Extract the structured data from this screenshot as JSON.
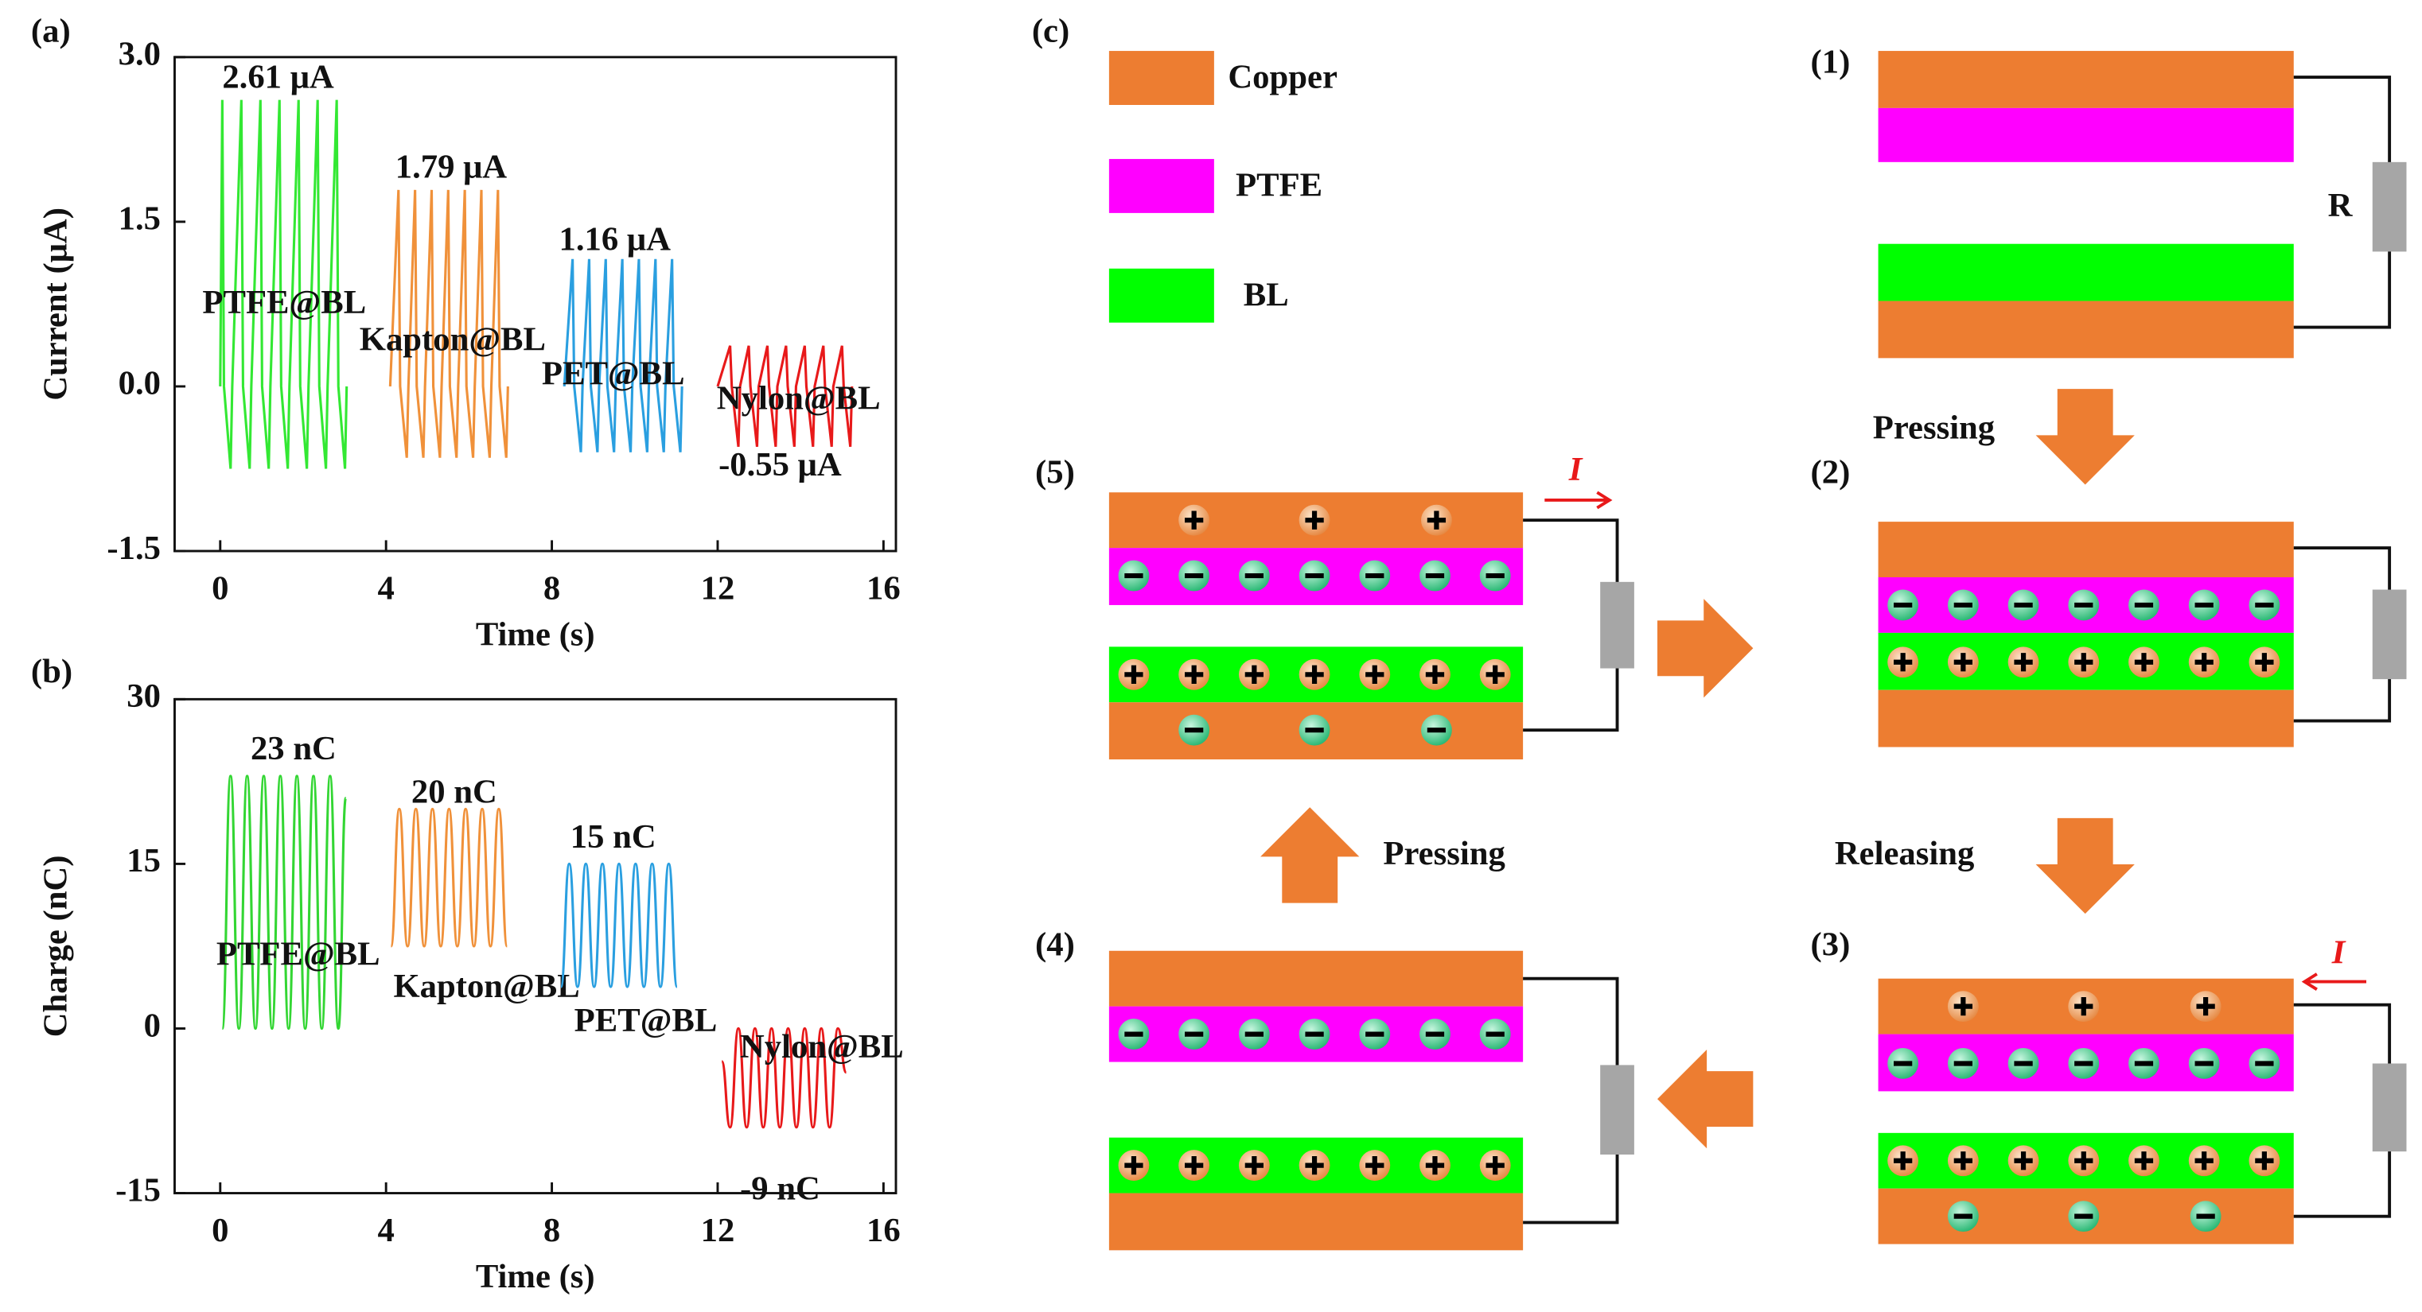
{
  "chart_data": [
    {
      "type": "line",
      "panel": "(a)",
      "xlabel": "Time (s)",
      "ylabel": "Current (μA)",
      "xlim": [
        -1.1,
        16.3
      ],
      "ylim": [
        -1.5,
        3.0
      ],
      "xticks": [
        0,
        4,
        8,
        12,
        16
      ],
      "yticks": [
        -1.5,
        {
          "value": 0,
          "label": "0.0"
        },
        1.5,
        {
          "value": 3,
          "label": "3.0"
        }
      ],
      "annotations": [
        "2.61 μA",
        "1.79 μA",
        "1.16 μA",
        "-0.55 μA"
      ],
      "series": [
        {
          "name": "PTFE@BL",
          "color": "#33e833",
          "x": [
            0,
            0.05,
            0.09,
            0.25,
            0.29,
            0.51,
            0.55,
            0.71,
            0.75,
            0.97,
            1.01,
            1.17,
            1.21,
            1.43,
            1.47,
            1.63,
            1.67,
            1.89,
            1.93,
            2.09,
            2.13,
            2.35,
            2.39,
            2.55,
            2.59,
            2.81,
            2.85,
            3.01,
            3.05
          ],
          "values": [
            0,
            2.61,
            0,
            -0.75,
            0,
            2.61,
            0,
            -0.75,
            0,
            2.61,
            0,
            -0.75,
            0,
            2.61,
            0,
            -0.75,
            0,
            2.61,
            0,
            -0.75,
            0,
            2.61,
            0,
            -0.75,
            0,
            2.61,
            0,
            -0.75,
            0
          ]
        },
        {
          "name": "Kapton@BL",
          "color": "#f0913a",
          "x": [
            4.1,
            4.3,
            4.34,
            4.5,
            4.54,
            4.7,
            4.74,
            4.9,
            4.94,
            5.1,
            5.14,
            5.3,
            5.34,
            5.5,
            5.54,
            5.7,
            5.74,
            5.9,
            5.94,
            6.1,
            6.14,
            6.3,
            6.34,
            6.5,
            6.54,
            6.7,
            6.74,
            6.9,
            6.94
          ],
          "values": [
            0,
            1.79,
            0,
            -0.65,
            0,
            1.79,
            0,
            -0.65,
            0,
            1.79,
            0,
            -0.65,
            0,
            1.79,
            0,
            -0.65,
            0,
            1.79,
            0,
            -0.65,
            0,
            1.79,
            0,
            -0.65,
            0,
            1.79,
            0,
            -0.65,
            0
          ]
        },
        {
          "name": "PET@BL",
          "color": "#2a9fe0",
          "x": [
            8.3,
            8.5,
            8.54,
            8.7,
            8.74,
            8.9,
            8.94,
            9.1,
            9.14,
            9.3,
            9.34,
            9.5,
            9.54,
            9.7,
            9.74,
            9.9,
            9.94,
            10.1,
            10.14,
            10.3,
            10.34,
            10.5,
            10.54,
            10.7,
            10.74,
            10.9,
            10.94,
            11.1,
            11.14
          ],
          "values": [
            0,
            1.16,
            0,
            -0.6,
            0,
            1.16,
            0,
            -0.6,
            0,
            1.16,
            0,
            -0.6,
            0,
            1.16,
            0,
            -0.6,
            0,
            1.16,
            0,
            -0.6,
            0,
            1.16,
            0,
            -0.6,
            0,
            1.16,
            0,
            -0.6,
            0
          ]
        },
        {
          "name": "Nylon@BL",
          "color": "#e8191a",
          "x": [
            12.0,
            12.3,
            12.34,
            12.5,
            12.54,
            12.75,
            12.79,
            12.95,
            12.99,
            13.2,
            13.24,
            13.4,
            13.44,
            13.65,
            13.69,
            13.85,
            13.89,
            14.1,
            14.14,
            14.3,
            14.34,
            14.55,
            14.59,
            14.75,
            14.79,
            15.0,
            15.04,
            15.2,
            15.24
          ],
          "values": [
            0,
            0.37,
            0,
            -0.55,
            0,
            0.37,
            0,
            -0.55,
            0,
            0.37,
            0,
            -0.55,
            0,
            0.37,
            0,
            -0.55,
            0,
            0.37,
            0,
            -0.55,
            0,
            0.37,
            0,
            -0.55,
            0,
            0.37,
            0,
            -0.55,
            0
          ]
        }
      ]
    },
    {
      "type": "line",
      "smooth": true,
      "panel": "(b)",
      "xlabel": "Time (s)",
      "ylabel": "Charge (nC)",
      "xlim": [
        -1.1,
        16.3
      ],
      "ylim": [
        -15,
        30
      ],
      "xticks": [
        0,
        4,
        8,
        12,
        16
      ],
      "yticks": [
        -15,
        0,
        15,
        30
      ],
      "annotations": [
        "23 nC",
        "20 nC",
        "15 nC",
        "-9 nC"
      ],
      "series": [
        {
          "name": "PTFE@BL",
          "color": "#33d633",
          "x": [
            0.05,
            0.25,
            0.45,
            0.65,
            0.85,
            1.05,
            1.25,
            1.45,
            1.65,
            1.85,
            2.05,
            2.25,
            2.45,
            2.65,
            2.85,
            3.03
          ],
          "values": [
            0,
            23,
            0,
            23,
            0,
            23,
            0,
            23,
            0,
            23,
            0,
            23,
            0,
            23,
            0,
            21
          ]
        },
        {
          "name": "Kapton@BL",
          "color": "#f0913a",
          "x": [
            4.12,
            4.32,
            4.52,
            4.72,
            4.92,
            5.12,
            5.32,
            5.52,
            5.72,
            5.92,
            6.12,
            6.32,
            6.52,
            6.72,
            6.92
          ],
          "values": [
            7.5,
            20,
            7.5,
            20,
            7.5,
            20,
            7.5,
            20,
            7.5,
            20,
            7.5,
            20,
            7.5,
            20,
            7.5
          ]
        },
        {
          "name": "PET@BL",
          "color": "#2a9fe0",
          "x": [
            8.22,
            8.42,
            8.62,
            8.82,
            9.02,
            9.22,
            9.42,
            9.62,
            9.82,
            10.02,
            10.22,
            10.42,
            10.62,
            10.82,
            11.02
          ],
          "values": [
            3.8,
            15,
            3.8,
            15,
            3.8,
            15,
            3.8,
            15,
            3.8,
            15,
            3.8,
            15,
            3.8,
            15,
            3.8
          ]
        },
        {
          "name": "Nylon@BL",
          "color": "#e8191a",
          "x": [
            12.1,
            12.3,
            12.5,
            12.7,
            12.9,
            13.1,
            13.3,
            13.5,
            13.7,
            13.9,
            14.1,
            14.3,
            14.5,
            14.7,
            14.9,
            15.1
          ],
          "values": [
            -3,
            -9,
            0,
            -9,
            0,
            -9,
            0,
            -9,
            0,
            -9,
            0,
            -9,
            0,
            -9,
            0,
            -4
          ]
        }
      ]
    }
  ],
  "diagram": {
    "panel": "(c)",
    "legend": [
      {
        "label": "Copper",
        "color": "#ED7D31"
      },
      {
        "label": "PTFE",
        "color": "#FF00FF"
      },
      {
        "label": "BL",
        "color": "#00FF00"
      }
    ],
    "steps": [
      "(1)",
      "(2)",
      "(3)",
      "(4)",
      "(5)"
    ],
    "resistor": "R",
    "current": "I",
    "arrows": [
      "Pressing",
      "Releasing",
      "Pressing"
    ]
  }
}
